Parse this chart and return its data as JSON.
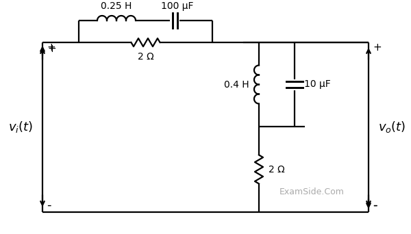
{
  "bg_color": "#ffffff",
  "line_color": "#000000",
  "figsize": [
    6.0,
    3.42
  ],
  "dpi": 100,
  "L1_label": "0.25 H",
  "C1_label": "100 μF",
  "R1_label": "2 Ω",
  "L2_label": "0.4 H",
  "C2_label": "10 μF",
  "R2_label": "2 Ω",
  "examside_text": "ExamSide.Com",
  "lw": 1.6
}
